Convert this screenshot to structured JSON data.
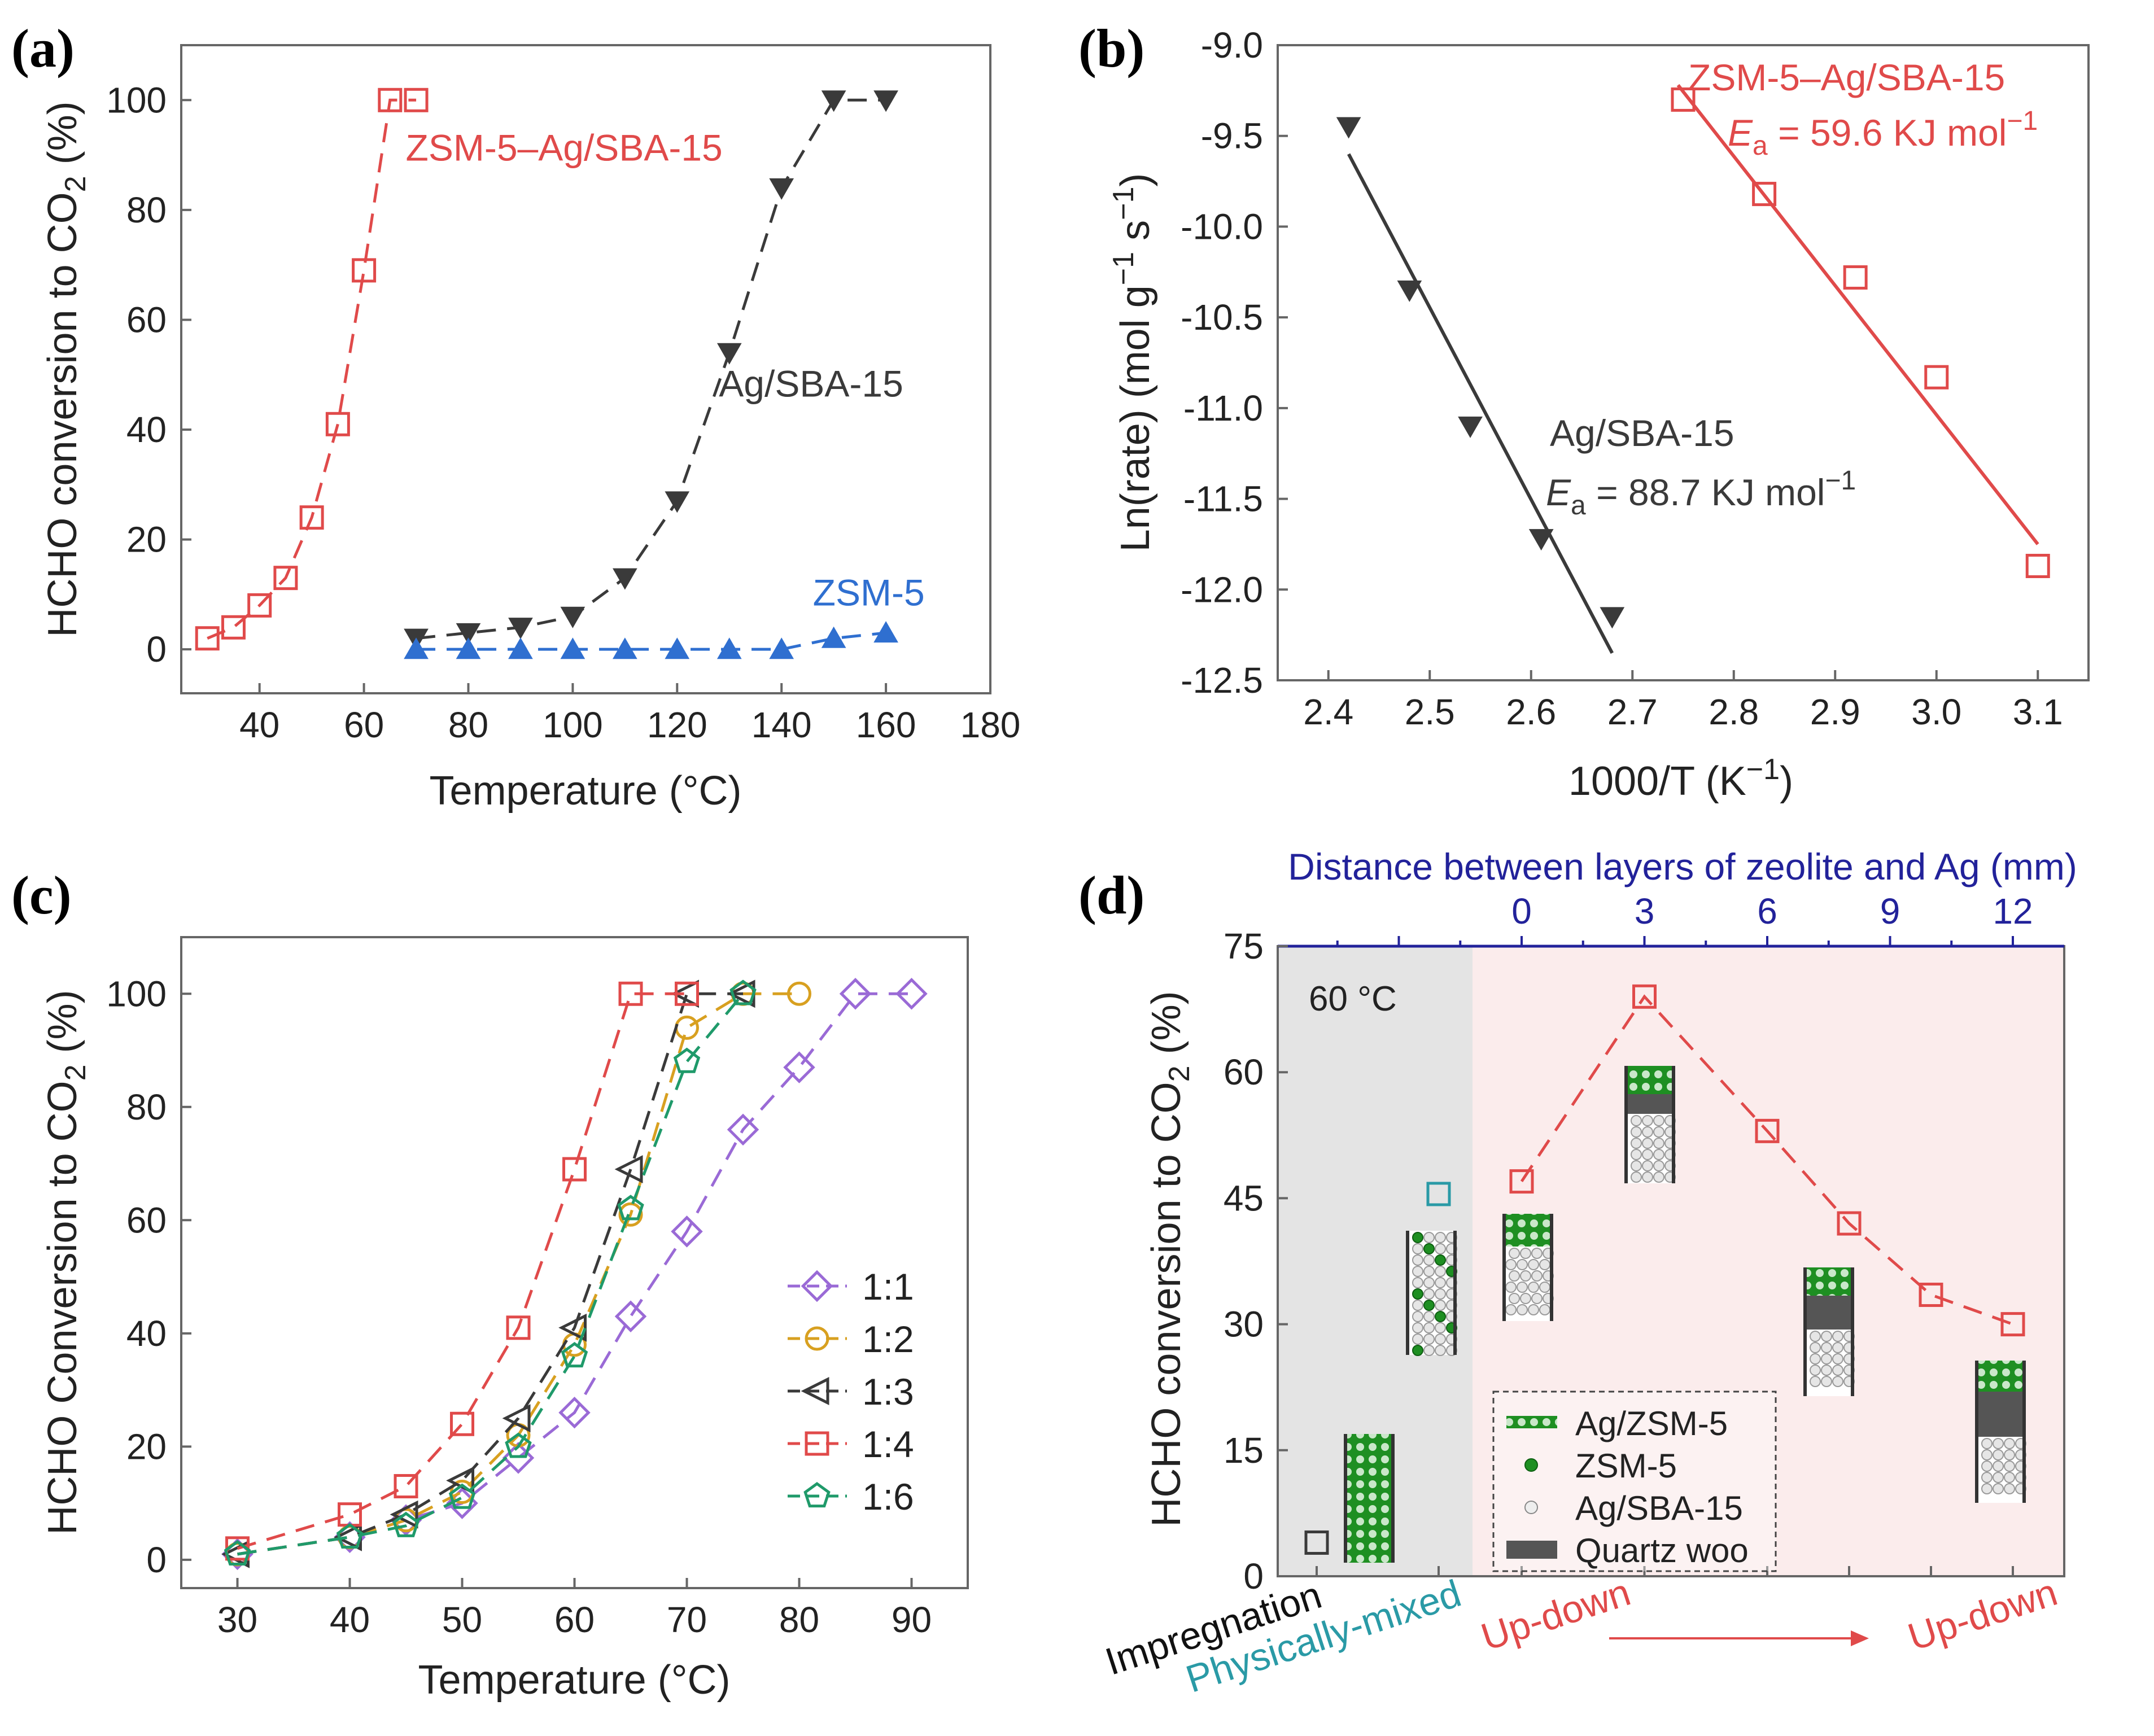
{
  "colors": {
    "red": "#e04a4a",
    "black": "#3a3a3a",
    "blue": "#2f6fd0",
    "navy": "#22229a",
    "teal": "#2a9aa6",
    "purple": "#9a6ad6",
    "orange": "#d8a020",
    "green": "#1f9a6a",
    "beadgreen": "#1e8f22",
    "gray_region": "#e4e4e4",
    "pink_region": "#fbecec",
    "quartz": "#555555"
  },
  "chart_data": [
    {
      "id": "a",
      "panel_label": "(a)",
      "type": "line",
      "xlabel": "Temperature (°C)",
      "ylabel_main": "HCHO conversion to CO",
      "ylabel_sub": "2",
      "ylabel_end": " (%)",
      "xlim": [
        25,
        180
      ],
      "ylim": [
        -8,
        110
      ],
      "xticks": [
        40,
        60,
        80,
        100,
        120,
        140,
        160,
        180
      ],
      "yticks": [
        0,
        20,
        40,
        60,
        80,
        100
      ],
      "series": [
        {
          "name": "ZSM-5–Ag/SBA-15",
          "marker": "square-open",
          "color": "red",
          "x": [
            30,
            35,
            40,
            45,
            50,
            55,
            60,
            65,
            70
          ],
          "y": [
            2,
            4,
            8,
            13,
            24,
            41,
            69,
            100,
            100
          ]
        },
        {
          "name": "Ag/SBA-15",
          "marker": "triangle-down-filled",
          "color": "black",
          "x": [
            70,
            80,
            90,
            100,
            110,
            120,
            130,
            140,
            150,
            160
          ],
          "y": [
            2,
            3,
            4,
            6,
            13,
            27,
            54,
            84,
            100,
            100
          ]
        },
        {
          "name": "ZSM-5",
          "marker": "triangle-up-filled",
          "color": "blue",
          "x": [
            70,
            80,
            90,
            100,
            110,
            120,
            130,
            140,
            150,
            160
          ],
          "y": [
            0,
            0,
            0,
            0,
            0,
            0,
            0,
            0,
            2,
            3
          ]
        }
      ],
      "annotations": [
        {
          "text": "ZSM-5–Ag/SBA-15",
          "color": "red",
          "x": 68,
          "y": 89
        },
        {
          "text": "Ag/SBA-15",
          "color": "black",
          "x": 128,
          "y": 46
        },
        {
          "text": "ZSM-5",
          "color": "blue",
          "x": 146,
          "y": 8
        }
      ]
    },
    {
      "id": "b",
      "panel_label": "(b)",
      "type": "scatter",
      "xlabel_main": "1000/T (K",
      "xlabel_sup": "−1",
      "xlabel_end": ")",
      "ylabel_main": "Ln(rate) (mol g",
      "ylabel_sup1": "−1",
      "ylabel_mid": " s",
      "ylabel_sup2": "−1",
      "ylabel_end": ")",
      "xlim": [
        2.35,
        3.15
      ],
      "ylim": [
        -12.5,
        -9.0
      ],
      "xticks": [
        2.4,
        2.5,
        2.6,
        2.7,
        2.8,
        2.9,
        3.0,
        3.1
      ],
      "yticks": [
        -12.5,
        -12.0,
        -11.5,
        -11.0,
        -10.5,
        -10.0,
        -9.5,
        -9.0
      ],
      "series": [
        {
          "name": "Ag/SBA-15",
          "marker": "triangle-down-filled",
          "color": "black",
          "x": [
            2.42,
            2.48,
            2.54,
            2.61,
            2.68
          ],
          "y": [
            -9.45,
            -10.35,
            -11.1,
            -11.72,
            -12.15
          ],
          "fit": {
            "x": [
              2.42,
              2.68
            ],
            "y": [
              -9.6,
              -12.35
            ]
          },
          "label": "Ag/SBA-15",
          "ea_prefix": "E",
          "ea_sub": "a",
          "ea_value": " = 88.7 KJ mol",
          "ea_sup": "−1"
        },
        {
          "name": "ZSM-5–Ag/SBA-15",
          "marker": "square-open",
          "color": "red",
          "x": [
            2.75,
            2.83,
            2.92,
            3.0,
            3.1
          ],
          "y": [
            -9.3,
            -9.82,
            -10.28,
            -10.83,
            -11.87
          ],
          "fit": {
            "x": [
              2.745,
              3.1
            ],
            "y": [
              -9.22,
              -11.75
            ]
          },
          "label": "ZSM-5–Ag/SBA-15",
          "ea_prefix": "E",
          "ea_sub": "a",
          "ea_value": " = 59.6 KJ mol",
          "ea_sup": "−1"
        }
      ]
    },
    {
      "id": "c",
      "panel_label": "(c)",
      "type": "line",
      "xlabel": "Temperature (°C)",
      "ylabel_main": "HCHO Conversion to CO",
      "ylabel_sub": "2",
      "ylabel_end": " (%)",
      "xlim": [
        25,
        95
      ],
      "ylim": [
        -5,
        110
      ],
      "xticks": [
        30,
        40,
        50,
        60,
        70,
        80,
        90
      ],
      "yticks": [
        0,
        20,
        40,
        60,
        80,
        100
      ],
      "series": [
        {
          "name": "1:1",
          "marker": "diamond-open",
          "color": "purple",
          "x": [
            30,
            40,
            45,
            50,
            55,
            60,
            65,
            70,
            75,
            80,
            85,
            90
          ],
          "y": [
            1,
            4,
            7,
            10,
            18,
            26,
            43,
            58,
            76,
            87,
            100,
            100
          ]
        },
        {
          "name": "1:2",
          "marker": "circle-open",
          "color": "orange",
          "x": [
            30,
            40,
            45,
            50,
            55,
            60,
            65,
            70,
            75,
            80
          ],
          "y": [
            1,
            4,
            7,
            12,
            22,
            38,
            61,
            94,
            100,
            100
          ]
        },
        {
          "name": "1:3",
          "marker": "triangle-left-open",
          "color": "black",
          "x": [
            30,
            40,
            45,
            50,
            55,
            60,
            65,
            70,
            75
          ],
          "y": [
            1,
            4,
            8,
            14,
            25,
            41,
            69,
            100,
            100
          ]
        },
        {
          "name": "1:4",
          "marker": "square-open",
          "color": "red",
          "x": [
            30,
            40,
            45,
            50,
            55,
            60,
            65,
            70
          ],
          "y": [
            2,
            8,
            13,
            24,
            41,
            69,
            100,
            100
          ]
        },
        {
          "name": "1:6",
          "marker": "pentagon-open",
          "color": "green",
          "x": [
            30,
            40,
            45,
            50,
            55,
            60,
            65,
            70,
            75
          ],
          "y": [
            1,
            4,
            6,
            11,
            20,
            36,
            62,
            88,
            100
          ]
        }
      ],
      "legend": "bottom-right"
    },
    {
      "id": "d",
      "panel_label": "(d)",
      "type": "line",
      "top_axis_title": "Distance between layers of zeolite and Ag (mm)",
      "top_ticks": [
        "0",
        "3",
        "6",
        "9",
        "12"
      ],
      "temperature_note": "60 °C",
      "ylabel_main": "HCHO conversion to CO",
      "ylabel_sub": "2",
      "ylabel_end": " (%)",
      "ylim": [
        0,
        75
      ],
      "yticks": [
        0,
        15,
        30,
        45,
        60,
        75
      ],
      "single_points": [
        {
          "name": "Impregnation",
          "value": 4,
          "color": "black"
        },
        {
          "name": "Physically-mixed",
          "value": 45.5,
          "color": "teal"
        }
      ],
      "series": [
        {
          "name": "Up-down",
          "marker": "square-open",
          "color": "red",
          "distance_mm": [
            0,
            3,
            6,
            8,
            10,
            12
          ],
          "values": [
            47,
            69,
            53,
            42,
            33.5,
            30
          ]
        }
      ],
      "bottom_labels": {
        "impregnation": "Impregnation",
        "physically_mixed": "Physically-mixed",
        "up_down_start": "Up-down",
        "up_down_end": "Up-down"
      },
      "legend_items": [
        {
          "label": "Ag/ZSM-5",
          "icon": "green-bead-row"
        },
        {
          "label": "ZSM-5",
          "icon": "green-dot"
        },
        {
          "label": "Ag/SBA-15",
          "icon": "white-dot"
        },
        {
          "label": "Quartz woo",
          "icon": "gray-bar"
        }
      ]
    }
  ]
}
